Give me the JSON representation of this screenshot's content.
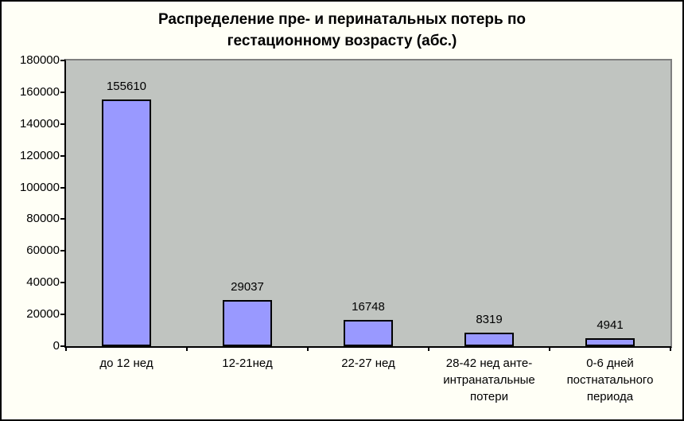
{
  "chart": {
    "title_lines": [
      "Распределение пре- и перинатальных потерь по",
      "гестационному возрасту (абс.)"
    ]
  },
  "chart_data": {
    "type": "bar",
    "title": "Распределение пре- и перинатальных потерь по гестационному возрасту (абс.)",
    "categories": [
      "до 12 нед",
      "12-21нед",
      "22-27 нед",
      "28-42 нед анте-\nинтранатальные\nпотери",
      "0-6 дней\nпостнатального\nпериода"
    ],
    "values": [
      155610,
      29037,
      16748,
      8319,
      4941
    ],
    "data_labels": [
      "155610",
      "29037",
      "16748",
      "8319",
      "4941"
    ],
    "xlabel": "",
    "ylabel": "",
    "ylim": [
      0,
      180000
    ],
    "ytick_step": 20000,
    "ytick_labels": [
      "0",
      "20000",
      "40000",
      "60000",
      "80000",
      "100000",
      "120000",
      "140000",
      "160000",
      "180000"
    ],
    "grid": false,
    "legend": "none",
    "colors": {
      "bar_fill": "#9999FF",
      "bar_border": "#000000",
      "plot_bg": "#C0C4C0",
      "plot_border": "#7F7F7F",
      "axis_line": "#000000",
      "page_bg": "#FFFFF6",
      "frame_border": "#000000",
      "text": "#000000"
    }
  }
}
